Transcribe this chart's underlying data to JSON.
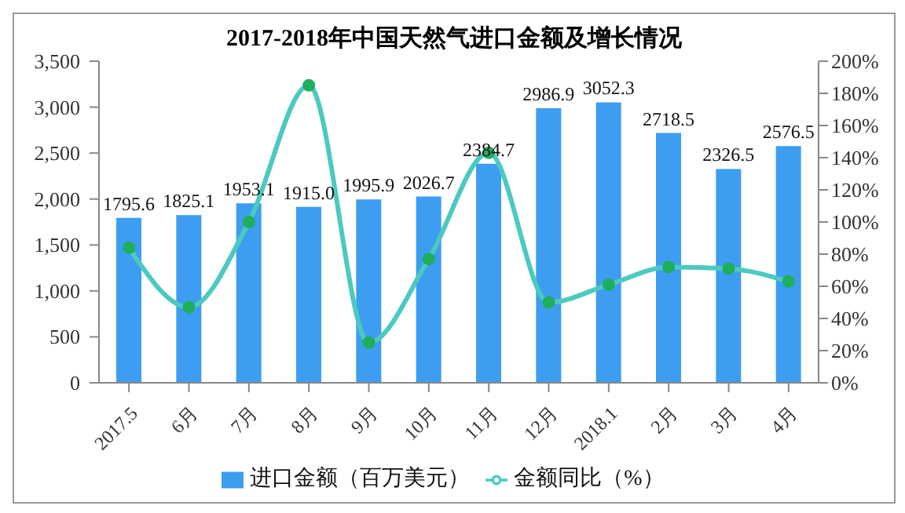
{
  "chart_data": {
    "type": "bar",
    "title": "2017-2018年中国天然气进口金额及增长情况",
    "categories": [
      "2017.5",
      "6月",
      "7月",
      "8月",
      "9月",
      "10月",
      "11月",
      "12月",
      "2018.1",
      "2月",
      "3月",
      "4月"
    ],
    "series": [
      {
        "name": "进口金额（百万美元）",
        "color": "#3d9df0",
        "values": [
          1795.6,
          1825.1,
          1953.1,
          1915.0,
          1995.9,
          2026.7,
          2384.7,
          2986.9,
          3052.3,
          2718.5,
          2326.5,
          2576.5
        ],
        "value_labels": [
          "1795.6",
          "1825.1",
          "1953.1",
          "1915.0",
          "1995.9",
          "2026.7",
          "2384.7",
          "2986.9",
          "3052.3",
          "2718.5",
          "2326.5",
          "2576.5"
        ]
      },
      {
        "name": "金额同比（%）",
        "type": "line",
        "axis": "y2",
        "color": "#4cc9c0",
        "values": [
          84,
          47,
          100,
          185,
          25,
          77,
          143,
          50,
          61,
          72,
          71,
          63
        ]
      }
    ],
    "ylim": [
      0,
      3500
    ],
    "yticks": [
      0,
      500,
      {
        "value": 1000,
        "label": "1,000"
      },
      {
        "value": 1500,
        "label": "1,500"
      },
      {
        "value": 2000,
        "label": "2,000"
      },
      {
        "value": 2500,
        "label": "2,500"
      },
      {
        "value": 3000,
        "label": "3,000"
      },
      {
        "value": 3500,
        "label": "3,500"
      }
    ],
    "y2lim": [
      0,
      200
    ],
    "y2ticks": [
      {
        "value": 0,
        "label": "0%"
      },
      {
        "value": 20,
        "label": "20%"
      },
      {
        "value": 40,
        "label": "40%"
      },
      {
        "value": 60,
        "label": "60%"
      },
      {
        "value": 80,
        "label": "80%"
      },
      {
        "value": 100,
        "label": "100%"
      },
      {
        "value": 120,
        "label": "120%"
      },
      {
        "value": 140,
        "label": "140%"
      },
      {
        "value": 160,
        "label": "160%"
      },
      {
        "value": 180,
        "label": "180%"
      },
      {
        "value": 200,
        "label": "200%"
      }
    ],
    "marker": "circle",
    "grid": false,
    "legend": "bottom"
  }
}
